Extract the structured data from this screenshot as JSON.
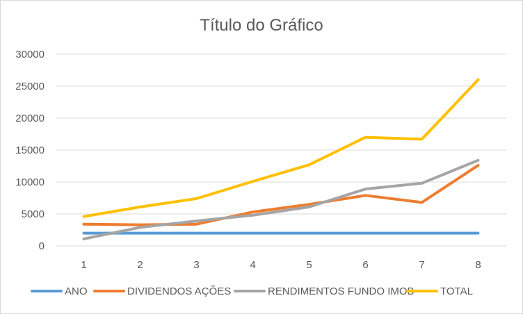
{
  "chart_data": {
    "type": "line",
    "title": "Título do Gráfico",
    "x": [
      "1",
      "2",
      "3",
      "4",
      "5",
      "6",
      "7",
      "8"
    ],
    "ylim": [
      0,
      30000
    ],
    "yticks": [
      "0",
      "5000",
      "10000",
      "15000",
      "20000",
      "25000",
      "30000"
    ],
    "grid": true,
    "legend": "bottom",
    "series": [
      {
        "name": "ANO",
        "color": "#5b9bd5",
        "values": [
          2000,
          2000,
          2000,
          2000,
          2000,
          2000,
          2000,
          2000
        ]
      },
      {
        "name": "DIVIDENDOS AÇÕES",
        "color": "#ed7d31",
        "values": [
          3400,
          3300,
          3400,
          5300,
          6500,
          7900,
          6800,
          12600
        ]
      },
      {
        "name": "RENDIMENTOS FUNDO IMOB",
        "color": "#a5a5a5",
        "values": [
          1100,
          2900,
          3900,
          4800,
          6100,
          8900,
          9800,
          13400
        ]
      },
      {
        "name": "TOTAL",
        "color": "#ffc000",
        "values": [
          4600,
          6100,
          7400,
          10100,
          12700,
          17000,
          16700,
          26000
        ]
      }
    ]
  }
}
